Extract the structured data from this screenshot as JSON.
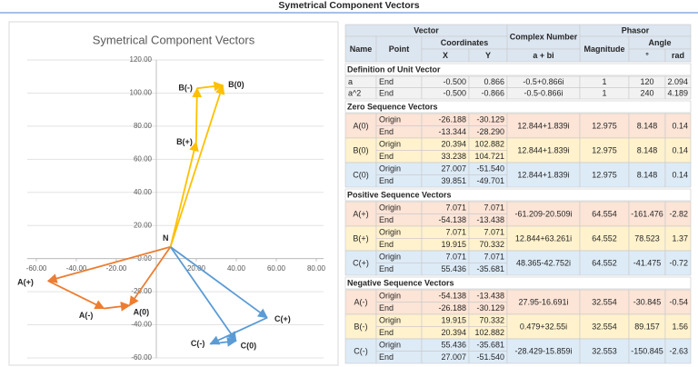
{
  "page_title": "Symetrical Component Vectors",
  "chart_data": {
    "type": "scatter",
    "title": "Symetrical Component Vectors",
    "arrows": true,
    "grid": true,
    "xlim": [
      -60,
      80
    ],
    "xticks": [
      {
        "value": -60,
        "label": "-60.00"
      },
      {
        "value": -40,
        "label": "-40.00"
      },
      {
        "value": -20,
        "label": "-20.00"
      },
      {
        "value": 20,
        "label": "20.00"
      },
      {
        "value": 40,
        "label": "40.00"
      },
      {
        "value": 60,
        "label": "60.00"
      },
      {
        "value": 80,
        "label": "80.00"
      }
    ],
    "ylim": [
      -60,
      120
    ],
    "yticks": [
      {
        "value": -60,
        "label": "-60.00"
      },
      {
        "value": -40,
        "label": "-40.00"
      },
      {
        "value": -20,
        "label": "-20.00"
      },
      {
        "value": 0,
        "label": "0.00"
      },
      {
        "value": 20,
        "label": "20.00"
      },
      {
        "value": 40,
        "label": "40.00"
      },
      {
        "value": 60,
        "label": "60.00"
      },
      {
        "value": 80,
        "label": "80.00"
      },
      {
        "value": 100,
        "label": "100.00"
      },
      {
        "value": 120,
        "label": "120.00"
      }
    ],
    "series": [
      {
        "color": "#ed7d31",
        "x": [
          7.071,
          -54.138,
          -26.188,
          -13.344
        ],
        "y": [
          7.071,
          -13.438,
          -30.129,
          -28.29
        ],
        "labels": [
          "N",
          "A(+)",
          "A(-)",
          "A(0)"
        ]
      },
      {
        "color": "#ffc000",
        "x": [
          7.071,
          19.915,
          20.394,
          33.238
        ],
        "y": [
          7.071,
          70.332,
          102.882,
          104.721
        ],
        "labels": [
          null,
          "B(+)",
          "B(-)",
          "B(0)"
        ]
      },
      {
        "color": "#5b9bd5",
        "x": [
          7.071,
          55.436,
          27.007,
          39.851
        ],
        "y": [
          7.071,
          -35.681,
          -51.54,
          -49.701
        ],
        "labels": [
          null,
          "C(+)",
          "C(-)",
          "C(0)"
        ]
      }
    ]
  },
  "table": {
    "header": {
      "vector": "Vector",
      "complex": "Complex Number",
      "phasor": "Phasor",
      "name": "Name",
      "point": "Point",
      "coordinates": "Coordinates",
      "magnitude": "Magnitude",
      "angle": "Angle",
      "x": "X",
      "y": "Y",
      "form": "a + bi",
      "deg": "°",
      "rad": "rad"
    },
    "sections": [
      {
        "title": "Definition of Unit Vector",
        "rows": [
          [
            "a",
            "End",
            "-0.500",
            "0.866",
            "-0.5+0.866i",
            "1",
            "120",
            "2.094"
          ],
          [
            "a^2",
            "End",
            "-0.500",
            "-0.866",
            "-0.5-0.866i",
            "1",
            "240",
            "4.189"
          ]
        ]
      },
      {
        "title": "Zero Sequence Vectors",
        "groups": [
          {
            "name": "A(0)",
            "origin": [
              "Origin",
              "-26.188",
              "-30.129"
            ],
            "end": [
              "End",
              "-13.344",
              "-28.290"
            ],
            "complex": "12.844+1.839i",
            "magnitude": "12.975",
            "deg": "8.148",
            "rad": "0.14"
          },
          {
            "name": "B(0)",
            "origin": [
              "Origin",
              "20.394",
              "102.882"
            ],
            "end": [
              "End",
              "33.238",
              "104.721"
            ],
            "complex": "12.844+1.839i",
            "magnitude": "12.975",
            "deg": "8.148",
            "rad": "0.14"
          },
          {
            "name": "C(0)",
            "origin": [
              "Origin",
              "27.007",
              "-51.540"
            ],
            "end": [
              "End",
              "39.851",
              "-49.701"
            ],
            "complex": "12.844+1.839i",
            "magnitude": "12.975",
            "deg": "8.148",
            "rad": "0.14"
          }
        ]
      },
      {
        "title": "Positive Sequence Vectors",
        "groups": [
          {
            "name": "A(+)",
            "origin": [
              "Origin",
              "7.071",
              "7.071"
            ],
            "end": [
              "End",
              "-54.138",
              "-13.438"
            ],
            "complex": "-61.209-20.509i",
            "magnitude": "64.554",
            "deg": "-161.476",
            "rad": "-2.82"
          },
          {
            "name": "B(+)",
            "origin": [
              "Origin",
              "7.071",
              "7.071"
            ],
            "end": [
              "End",
              "19.915",
              "70.332"
            ],
            "complex": "12.844+63.261i",
            "magnitude": "64.552",
            "deg": "78.523",
            "rad": "1.37"
          },
          {
            "name": "C(+)",
            "origin": [
              "Origin",
              "7.071",
              "7.071"
            ],
            "end": [
              "End",
              "55.436",
              "-35.681"
            ],
            "complex": "48.365-42.752i",
            "magnitude": "64.552",
            "deg": "-41.475",
            "rad": "-0.72"
          }
        ]
      },
      {
        "title": "Negative Sequence Vectors",
        "groups": [
          {
            "name": "A(-)",
            "origin": [
              "Origin",
              "-54.138",
              "-13.438"
            ],
            "end": [
              "End",
              "-26.188",
              "-30.129"
            ],
            "complex": "27.95-16.691i",
            "magnitude": "32.554",
            "deg": "-30.845",
            "rad": "-0.54"
          },
          {
            "name": "B(-)",
            "origin": [
              "Origin",
              "19.915",
              "70.332"
            ],
            "end": [
              "End",
              "20.394",
              "102.882"
            ],
            "complex": "0.479+32.55i",
            "magnitude": "32.554",
            "deg": "89.157",
            "rad": "1.56"
          },
          {
            "name": "C(-)",
            "origin": [
              "Origin",
              "55.436",
              "-35.681"
            ],
            "end": [
              "End",
              "27.007",
              "-51.540"
            ],
            "complex": "-28.429-15.859i",
            "magnitude": "32.553",
            "deg": "-150.845",
            "rad": "-2.63"
          }
        ]
      }
    ]
  }
}
